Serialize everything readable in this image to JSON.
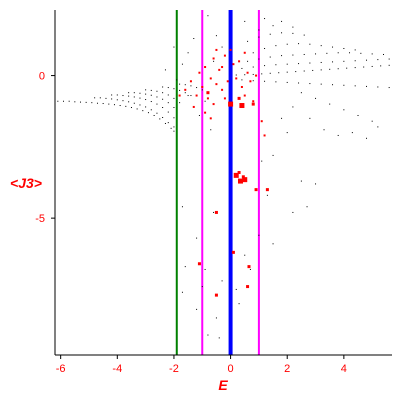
{
  "chart_data": {
    "type": "scatter",
    "title": "",
    "xlabel": "E",
    "ylabel": "<J3>",
    "xlim": [
      -6.2,
      5.7
    ],
    "ylim": [
      -9.8,
      2.3
    ],
    "x_ticks": [
      -6,
      -4,
      -2,
      0,
      2,
      4
    ],
    "x_tick_labels": [
      "-6",
      "-4",
      "-2",
      "0",
      "2",
      "4"
    ],
    "y_ticks": [
      0,
      -5
    ],
    "y_tick_labels": [
      "0",
      "-5"
    ],
    "grid": false,
    "legend": "none",
    "vlines": [
      {
        "x": -1.9,
        "color": "#008000",
        "width": 2
      },
      {
        "x": -1.0,
        "color": "#ff00ff",
        "width": 2
      },
      {
        "x": 0.0,
        "color": "#0000ff",
        "width": 4
      },
      {
        "x": 1.0,
        "color": "#ff00ff",
        "width": 2
      }
    ],
    "series": [
      {
        "color": "#000000",
        "marker_size": 1,
        "points": [
          [
            -6.1,
            -0.9
          ],
          [
            -5.9,
            -0.9
          ],
          [
            -5.7,
            -0.9
          ],
          [
            -5.5,
            -0.92
          ],
          [
            -5.3,
            -0.93
          ],
          [
            -5.1,
            -0.94
          ],
          [
            -4.9,
            -0.95
          ],
          [
            -4.7,
            -0.97
          ],
          [
            -4.5,
            -0.98
          ],
          [
            -4.3,
            -1.0
          ],
          [
            -4.1,
            -1.02
          ],
          [
            -3.9,
            -1.05
          ],
          [
            -3.7,
            -1.08
          ],
          [
            -3.5,
            -1.12
          ],
          [
            -3.3,
            -1.17
          ],
          [
            -3.1,
            -1.23
          ],
          [
            -2.9,
            -1.3
          ],
          [
            -2.7,
            -1.4
          ],
          [
            -2.5,
            -1.52
          ],
          [
            -2.3,
            -1.68
          ],
          [
            -2.1,
            -1.85
          ],
          [
            -2.0,
            -1.95
          ],
          [
            -4.8,
            -0.78
          ],
          [
            -4.6,
            -0.78
          ],
          [
            -4.4,
            -0.8
          ],
          [
            -4.2,
            -0.82
          ],
          [
            -4.0,
            -0.85
          ],
          [
            -3.8,
            -0.88
          ],
          [
            -3.6,
            -0.92
          ],
          [
            -3.4,
            -0.97
          ],
          [
            -3.2,
            -1.03
          ],
          [
            -3.0,
            -1.1
          ],
          [
            -2.8,
            -1.2
          ],
          [
            -2.6,
            -1.32
          ],
          [
            -2.4,
            -1.47
          ],
          [
            -2.2,
            -1.65
          ],
          [
            -2.0,
            -1.8
          ],
          [
            -4.2,
            -0.68
          ],
          [
            -4.0,
            -0.68
          ],
          [
            -3.8,
            -0.7
          ],
          [
            -3.6,
            -0.72
          ],
          [
            -3.4,
            -0.75
          ],
          [
            -3.2,
            -0.79
          ],
          [
            -3.0,
            -0.84
          ],
          [
            -2.8,
            -0.91
          ],
          [
            -2.6,
            -1.0
          ],
          [
            -2.4,
            -1.12
          ],
          [
            -2.2,
            -1.28
          ],
          [
            -2.0,
            -1.48
          ],
          [
            -3.6,
            -0.6
          ],
          [
            -3.4,
            -0.6
          ],
          [
            -3.2,
            -0.62
          ],
          [
            -3.0,
            -0.65
          ],
          [
            -2.8,
            -0.69
          ],
          [
            -2.6,
            -0.75
          ],
          [
            -2.4,
            -0.83
          ],
          [
            -2.2,
            -0.95
          ],
          [
            -2.0,
            -1.12
          ],
          [
            -3.0,
            -0.5
          ],
          [
            -2.8,
            -0.52
          ],
          [
            -2.6,
            -0.55
          ],
          [
            -2.4,
            -0.6
          ],
          [
            -2.2,
            -0.68
          ],
          [
            -2.0,
            -0.8
          ],
          [
            -1.8,
            -0.95
          ],
          [
            -2.4,
            -0.4
          ],
          [
            -2.2,
            -0.42
          ],
          [
            -2.0,
            -0.46
          ],
          [
            -1.8,
            -0.52
          ],
          [
            -1.6,
            -0.6
          ],
          [
            -1.4,
            -0.7
          ],
          [
            -1.8,
            -0.3
          ],
          [
            -1.6,
            -0.32
          ],
          [
            -1.4,
            -0.36
          ],
          [
            -1.2,
            -0.42
          ],
          [
            -1.0,
            -0.5
          ],
          [
            0.2,
            0.02
          ],
          [
            0.5,
            0.03
          ],
          [
            0.8,
            0.04
          ],
          [
            1.1,
            0.06
          ],
          [
            1.4,
            0.08
          ],
          [
            1.7,
            0.1
          ],
          [
            2.0,
            0.12
          ],
          [
            2.3,
            0.14
          ],
          [
            2.6,
            0.16
          ],
          [
            2.9,
            0.18
          ],
          [
            3.2,
            0.2
          ],
          [
            3.5,
            0.22
          ],
          [
            3.8,
            0.24
          ],
          [
            4.1,
            0.26
          ],
          [
            4.4,
            0.28
          ],
          [
            4.7,
            0.3
          ],
          [
            5.0,
            0.32
          ],
          [
            5.3,
            0.34
          ],
          [
            5.6,
            0.36
          ],
          [
            0.4,
            0.25
          ],
          [
            0.8,
            0.3
          ],
          [
            1.2,
            0.35
          ],
          [
            1.6,
            0.38
          ],
          [
            2.0,
            0.4
          ],
          [
            2.4,
            0.42
          ],
          [
            2.8,
            0.44
          ],
          [
            3.2,
            0.46
          ],
          [
            3.6,
            0.48
          ],
          [
            4.0,
            0.5
          ],
          [
            4.4,
            0.52
          ],
          [
            4.8,
            0.54
          ],
          [
            5.2,
            0.56
          ],
          [
            5.6,
            0.58
          ],
          [
            0.6,
            0.5
          ],
          [
            1.0,
            0.58
          ],
          [
            1.4,
            0.65
          ],
          [
            1.8,
            0.7
          ],
          [
            2.2,
            0.72
          ],
          [
            2.6,
            0.74
          ],
          [
            3.0,
            0.76
          ],
          [
            3.4,
            0.78
          ],
          [
            3.8,
            0.8
          ],
          [
            4.2,
            0.8
          ],
          [
            4.6,
            0.78
          ],
          [
            5.0,
            0.76
          ],
          [
            5.4,
            0.74
          ],
          [
            0.8,
            0.8
          ],
          [
            1.2,
            0.95
          ],
          [
            1.6,
            1.05
          ],
          [
            2.0,
            1.1
          ],
          [
            2.4,
            1.12
          ],
          [
            2.8,
            1.1
          ],
          [
            3.2,
            1.05
          ],
          [
            3.6,
            1.0
          ],
          [
            4.0,
            0.95
          ],
          [
            4.4,
            0.9
          ],
          [
            0.6,
            1.2
          ],
          [
            1.0,
            1.35
          ],
          [
            1.4,
            1.45
          ],
          [
            1.8,
            1.5
          ],
          [
            2.2,
            1.48
          ],
          [
            2.6,
            1.42
          ],
          [
            0.4,
            -0.15
          ],
          [
            0.8,
            -0.18
          ],
          [
            1.2,
            -0.2
          ],
          [
            1.6,
            -0.22
          ],
          [
            2.0,
            -0.24
          ],
          [
            2.4,
            -0.26
          ],
          [
            2.8,
            -0.28
          ],
          [
            3.2,
            -0.3
          ],
          [
            3.6,
            -0.32
          ],
          [
            4.0,
            -0.34
          ],
          [
            4.4,
            -0.36
          ],
          [
            4.8,
            -0.38
          ],
          [
            5.2,
            -0.4
          ],
          [
            5.6,
            -0.42
          ],
          [
            1.2,
            2.0
          ],
          [
            1.5,
            1.75
          ],
          [
            1.8,
            1.9
          ],
          [
            2.2,
            1.7
          ],
          [
            1.0,
            1.6
          ],
          [
            0.5,
            1.9
          ],
          [
            -0.5,
            1.4
          ],
          [
            -0.8,
            2.1
          ],
          [
            -1.3,
            1.3
          ],
          [
            -1.5,
            0.8
          ],
          [
            -2.0,
            1.0
          ],
          [
            -1.7,
            0.4
          ],
          [
            -2.3,
            0.2
          ],
          [
            2.5,
            -0.6
          ],
          [
            3.0,
            -0.8
          ],
          [
            3.5,
            -1.0
          ],
          [
            4.0,
            -1.2
          ],
          [
            4.5,
            -1.4
          ],
          [
            5.0,
            -1.6
          ],
          [
            2.2,
            -1.1
          ],
          [
            2.8,
            -1.5
          ],
          [
            3.3,
            -1.9
          ],
          [
            3.8,
            -2.1
          ],
          [
            4.3,
            -2.0
          ],
          [
            4.8,
            -2.2
          ],
          [
            2.0,
            -2.0
          ],
          [
            5.2,
            -1.8
          ],
          [
            1.8,
            -1.5
          ],
          [
            1.5,
            -2.8
          ],
          [
            1.1,
            -3.0
          ],
          [
            1.3,
            -4.2
          ],
          [
            2.5,
            -3.7
          ],
          [
            3.0,
            -3.8
          ],
          [
            2.2,
            -4.8
          ],
          [
            2.7,
            -4.6
          ],
          [
            1.0,
            -5.6
          ],
          [
            1.5,
            -5.9
          ],
          [
            0.5,
            -6.3
          ],
          [
            0.7,
            -6.8
          ],
          [
            0.2,
            -7.5
          ],
          [
            -0.3,
            -7.2
          ],
          [
            -0.9,
            -6.8
          ],
          [
            -1.2,
            -5.7
          ],
          [
            -0.6,
            -4.8
          ],
          [
            -1.7,
            -4.6
          ],
          [
            -1.6,
            -6.7
          ],
          [
            -1.7,
            -7.6
          ],
          [
            -1.2,
            -8.2
          ],
          [
            -0.8,
            -9.1
          ],
          [
            -0.4,
            -9.2
          ],
          [
            -0.5,
            -8.5
          ],
          [
            -1.0,
            -7.4
          ],
          [
            0.3,
            -8.0
          ],
          [
            -1.5,
            -0.7
          ],
          [
            -0.9,
            -0.9
          ],
          [
            -1.1,
            -1.4
          ],
          [
            -0.7,
            -1.9
          ],
          [
            -1.9,
            -0.15
          ],
          [
            -1.1,
            0.1
          ],
          [
            -0.6,
            0.5
          ],
          [
            -0.3,
            1.0
          ]
        ]
      },
      {
        "color": "#ff0000",
        "marker_size": 2,
        "points": [
          [
            -0.9,
            0.3
          ],
          [
            -0.6,
            0.6
          ],
          [
            -0.4,
            0.2
          ],
          [
            -0.2,
            0.7
          ],
          [
            0.1,
            0.4
          ],
          [
            0.3,
            0.5
          ],
          [
            0.5,
            0.8
          ],
          [
            0.6,
            0.1
          ],
          [
            -0.7,
            -0.1
          ],
          [
            -0.5,
            -0.3
          ],
          [
            -0.3,
            -0.5
          ],
          [
            -0.1,
            -0.2
          ],
          [
            0.2,
            -0.1
          ],
          [
            0.4,
            -0.4
          ],
          [
            0.7,
            -0.2
          ],
          [
            -1.0,
            -0.4
          ],
          [
            -1.2,
            -0.7
          ],
          [
            -0.8,
            -0.8
          ],
          [
            -0.6,
            -1.0
          ],
          [
            -0.9,
            -1.3
          ],
          [
            -1.3,
            -1.1
          ],
          [
            -0.7,
            -1.5
          ],
          [
            0.8,
            -0.9
          ],
          [
            1.1,
            -1.6
          ],
          [
            1.2,
            -2.1
          ],
          [
            0.5,
            -0.7
          ],
          [
            -1.1,
            0.1
          ],
          [
            -1.4,
            -0.2
          ],
          [
            -1.6,
            -0.5
          ],
          [
            -1.8,
            -0.7
          ],
          [
            -0.3,
            0.3
          ],
          [
            0.0,
            0.9
          ],
          [
            -0.2,
            -0.8
          ],
          [
            0.9,
            0.0
          ],
          [
            -0.5,
            0.9
          ]
        ]
      },
      {
        "color": "#ff0000",
        "marker_size": 5,
        "points": [
          [
            0.4,
            -1.05
          ],
          [
            0.2,
            -3.5
          ],
          [
            0.5,
            -3.65
          ],
          [
            0.35,
            -3.7
          ],
          [
            0.0,
            -1.0
          ]
        ]
      },
      {
        "color": "#ff0000",
        "marker_size": 3,
        "points": [
          [
            0.8,
            -1.0
          ],
          [
            0.3,
            -0.8
          ],
          [
            -0.8,
            -0.6
          ],
          [
            0.9,
            -4.0
          ],
          [
            -0.5,
            -4.8
          ],
          [
            -1.1,
            -6.6
          ],
          [
            0.1,
            -6.2
          ],
          [
            0.65,
            -6.7
          ],
          [
            -0.5,
            -7.7
          ],
          [
            0.6,
            -7.4
          ],
          [
            1.3,
            -4.0
          ],
          [
            0.3,
            -3.4
          ],
          [
            0.45,
            -3.55
          ]
        ]
      }
    ]
  }
}
